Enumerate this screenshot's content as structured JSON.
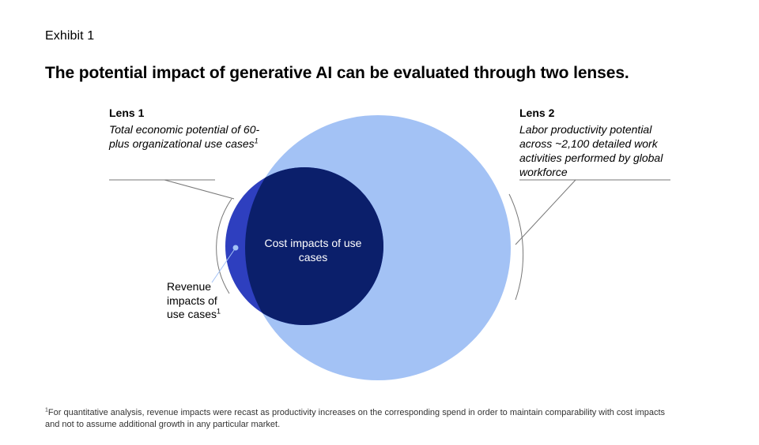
{
  "exhibit_label": "Exhibit 1",
  "title": "The potential impact of generative AI can be evaluated through two lenses.",
  "lens1": {
    "title": "Lens 1",
    "description": "Total economic potential of 60-plus organizational use cases",
    "footnote_marker": "1"
  },
  "lens2": {
    "title": "Lens 2",
    "description": "Labor productivity potential across ~2,100 detailed work activities performed by global workforce"
  },
  "inner_circle_label": "Cost impacts of use cases",
  "side_label": {
    "text": "Revenue impacts of use cases",
    "footnote_marker": "1"
  },
  "footnote": {
    "marker": "1",
    "text": "For quantitative analysis, revenue impacts were recast as productivity increases on the corresponding spend in order to maintain comparability with cost impacts and not to assume additional growth in any particular market."
  },
  "colors": {
    "large_circle": "#a3c2f5",
    "small_circle": "#2e3fbf",
    "overlap": "#0b1f6b",
    "connector": "#777777"
  }
}
